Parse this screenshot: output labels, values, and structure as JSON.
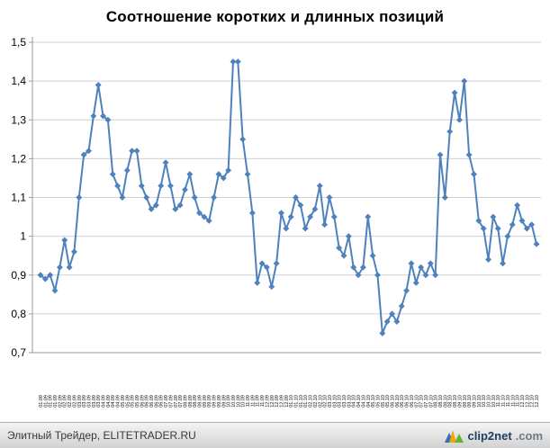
{
  "page": {
    "title": "Соотношение коротких и длинных позиций"
  },
  "footer": {
    "credit": "Элитный Трейдер, ELITETRADER.RU",
    "brand": "clip2net",
    "brand_tld": ".com"
  },
  "chart_data": {
    "type": "line",
    "title": "Соотношение коротких и длинных позиций",
    "series_name": "Соотношение коротких и длинных позиций",
    "legend": "none",
    "grid": true,
    "line_color": "#4F81BD",
    "marker": "diamond",
    "grid_color": "#D0D0D0",
    "axis_color": "#9A9A9A",
    "ylim": [
      0.7,
      1.5
    ],
    "ytick_values": [
      0.7,
      0.8,
      0.9,
      1.0,
      1.1,
      1.2,
      1.3,
      1.4,
      1.5
    ],
    "ytick_labels": [
      "0,7",
      "0,8",
      "0,9",
      "1",
      "1,1",
      "1,2",
      "1,3",
      "1,4",
      "1,5"
    ],
    "x": [
      "06.01.09",
      "13.01.09",
      "20.01.09",
      "27.01.09",
      "03.02.09",
      "10.02.09",
      "17.02.09",
      "24.02.09",
      "03.03.09",
      "10.03.09",
      "17.03.09",
      "24.03.09",
      "31.03.09",
      "07.04.09",
      "14.04.09",
      "21.04.09",
      "28.04.09",
      "05.05.09",
      "12.05.09",
      "19.05.09",
      "26.05.09",
      "02.06.09",
      "09.06.09",
      "16.06.09",
      "23.06.09",
      "30.06.09",
      "07.07.09",
      "14.07.09",
      "21.07.09",
      "28.07.09",
      "04.08.09",
      "11.08.09",
      "18.08.09",
      "25.08.09",
      "01.09.09",
      "08.09.09",
      "15.09.09",
      "22.09.09",
      "29.09.09",
      "06.10.09",
      "13.10.09",
      "20.10.09",
      "27.10.09",
      "03.11.09",
      "10.11.09",
      "17.11.09",
      "24.11.09",
      "01.12.09",
      "08.12.09",
      "15.12.09",
      "22.12.09",
      "29.12.09",
      "05.01.10",
      "12.01.10",
      "19.01.10",
      "26.01.10",
      "02.02.10",
      "09.02.10",
      "16.02.10",
      "23.02.10",
      "02.03.10",
      "09.03.10",
      "16.03.10",
      "23.03.10",
      "30.03.10",
      "06.04.10",
      "13.04.10",
      "20.04.10",
      "27.04.10",
      "04.05.10",
      "11.05.10",
      "18.05.10",
      "25.05.10",
      "01.06.10",
      "08.06.10",
      "15.06.10",
      "22.06.10",
      "29.06.10",
      "06.07.10",
      "13.07.10",
      "20.07.10",
      "27.07.10",
      "03.08.10",
      "10.08.10",
      "17.08.10",
      "24.08.10",
      "31.08.10",
      "07.09.10",
      "14.09.10",
      "21.09.10",
      "28.09.10",
      "05.10.10",
      "12.10.10",
      "19.10.10",
      "26.10.10",
      "02.11.10",
      "09.11.10",
      "16.11.10",
      "23.11.10",
      "30.11.10",
      "07.12.10",
      "14.12.10",
      "21.12.10",
      "28.12.10"
    ],
    "values": [
      0.9,
      0.89,
      0.9,
      0.86,
      0.92,
      0.99,
      0.92,
      0.96,
      1.1,
      1.21,
      1.22,
      1.31,
      1.39,
      1.31,
      1.3,
      1.16,
      1.13,
      1.1,
      1.17,
      1.22,
      1.22,
      1.13,
      1.1,
      1.07,
      1.08,
      1.13,
      1.19,
      1.13,
      1.07,
      1.08,
      1.12,
      1.16,
      1.1,
      1.06,
      1.05,
      1.04,
      1.1,
      1.16,
      1.15,
      1.17,
      1.45,
      1.45,
      1.25,
      1.16,
      1.06,
      0.88,
      0.93,
      0.92,
      0.87,
      0.93,
      1.06,
      1.02,
      1.05,
      1.1,
      1.08,
      1.02,
      1.05,
      1.07,
      1.13,
      1.03,
      1.1,
      1.05,
      0.97,
      0.95,
      1.0,
      0.92,
      0.9,
      0.92,
      1.05,
      0.95,
      0.9,
      0.75,
      0.78,
      0.8,
      0.78,
      0.82,
      0.86,
      0.93,
      0.88,
      0.92,
      0.9,
      0.93,
      0.9,
      1.21,
      1.1,
      1.27,
      1.37,
      1.3,
      1.4,
      1.21,
      1.16,
      1.04,
      1.02,
      0.94,
      1.05,
      1.02,
      0.93,
      1.0,
      1.03,
      1.08,
      1.04,
      1.02,
      1.03,
      0.98
    ]
  }
}
